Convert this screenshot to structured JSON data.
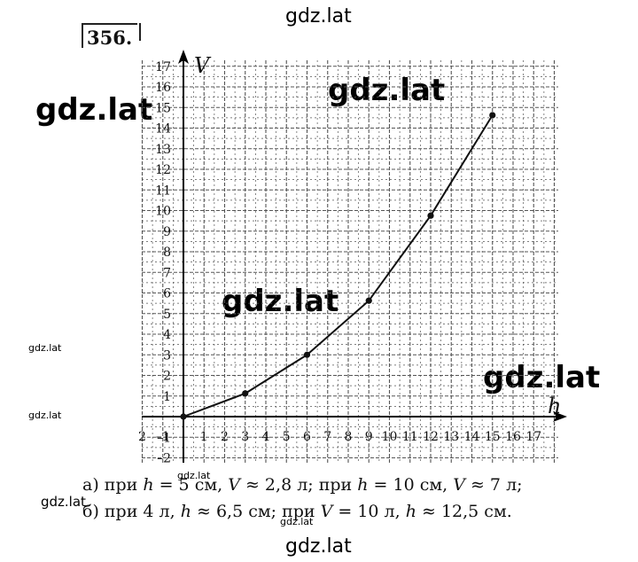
{
  "watermarks": {
    "top": "gdz.lat",
    "left": "gdz.lat",
    "upper_right": "gdz.lat",
    "middle": "gdz.lat",
    "right": "gdz.lat",
    "small_a": "gdz.lat",
    "small_b": "gdz.lat",
    "small_c": "gdz.lat",
    "small_d": "gdz.lat",
    "bottom_left": "gdz.lat",
    "bottom": "gdz.lat"
  },
  "problem_number": "356.",
  "answers": {
    "line_a": {
      "prefix": "а) при ",
      "var1": "h",
      "part2": " = 5 см, ",
      "var2": "V",
      "part3": " ≈ 2,8 л; при ",
      "var3": "h",
      "part4": " = 10 см, ",
      "var4": "V",
      "part5": " ≈ 7 л;"
    },
    "line_b": {
      "prefix": "б) при 4 л, ",
      "var1": "h",
      "part2": " ≈ 6,5 см; при ",
      "var2": "V",
      "part3": " = 10 л, ",
      "var3": "h",
      "part4": " ≈ 12,5 см."
    }
  },
  "chart_data": {
    "type": "line",
    "xlabel": "h",
    "ylabel": "V",
    "xlim": [
      -2,
      17
    ],
    "ylim": [
      -2,
      17
    ],
    "x_tick_labels": [
      "2",
      "–1",
      "",
      "1",
      "2",
      "3",
      "4",
      "5",
      "6",
      "7",
      "8",
      "9",
      "10",
      "11",
      "12",
      "13",
      "14",
      "15",
      "16",
      "17"
    ],
    "y_tick_labels": [
      "1",
      "2",
      "3",
      "4",
      "5",
      "6",
      "7",
      "8",
      "9",
      "10",
      "11",
      "12",
      "13",
      "14",
      "15",
      "16",
      "17"
    ],
    "y_neg_tick_labels": [
      "–1",
      "–2"
    ],
    "grid": true,
    "series": [
      {
        "x": [
          0,
          3,
          6,
          9,
          12,
          15
        ],
        "y": [
          0,
          1.125,
          3.0,
          5.625,
          9.75,
          14.625
        ]
      }
    ],
    "colors": {
      "line": "#111111",
      "grid": "#555555",
      "axis": "#000000"
    }
  }
}
